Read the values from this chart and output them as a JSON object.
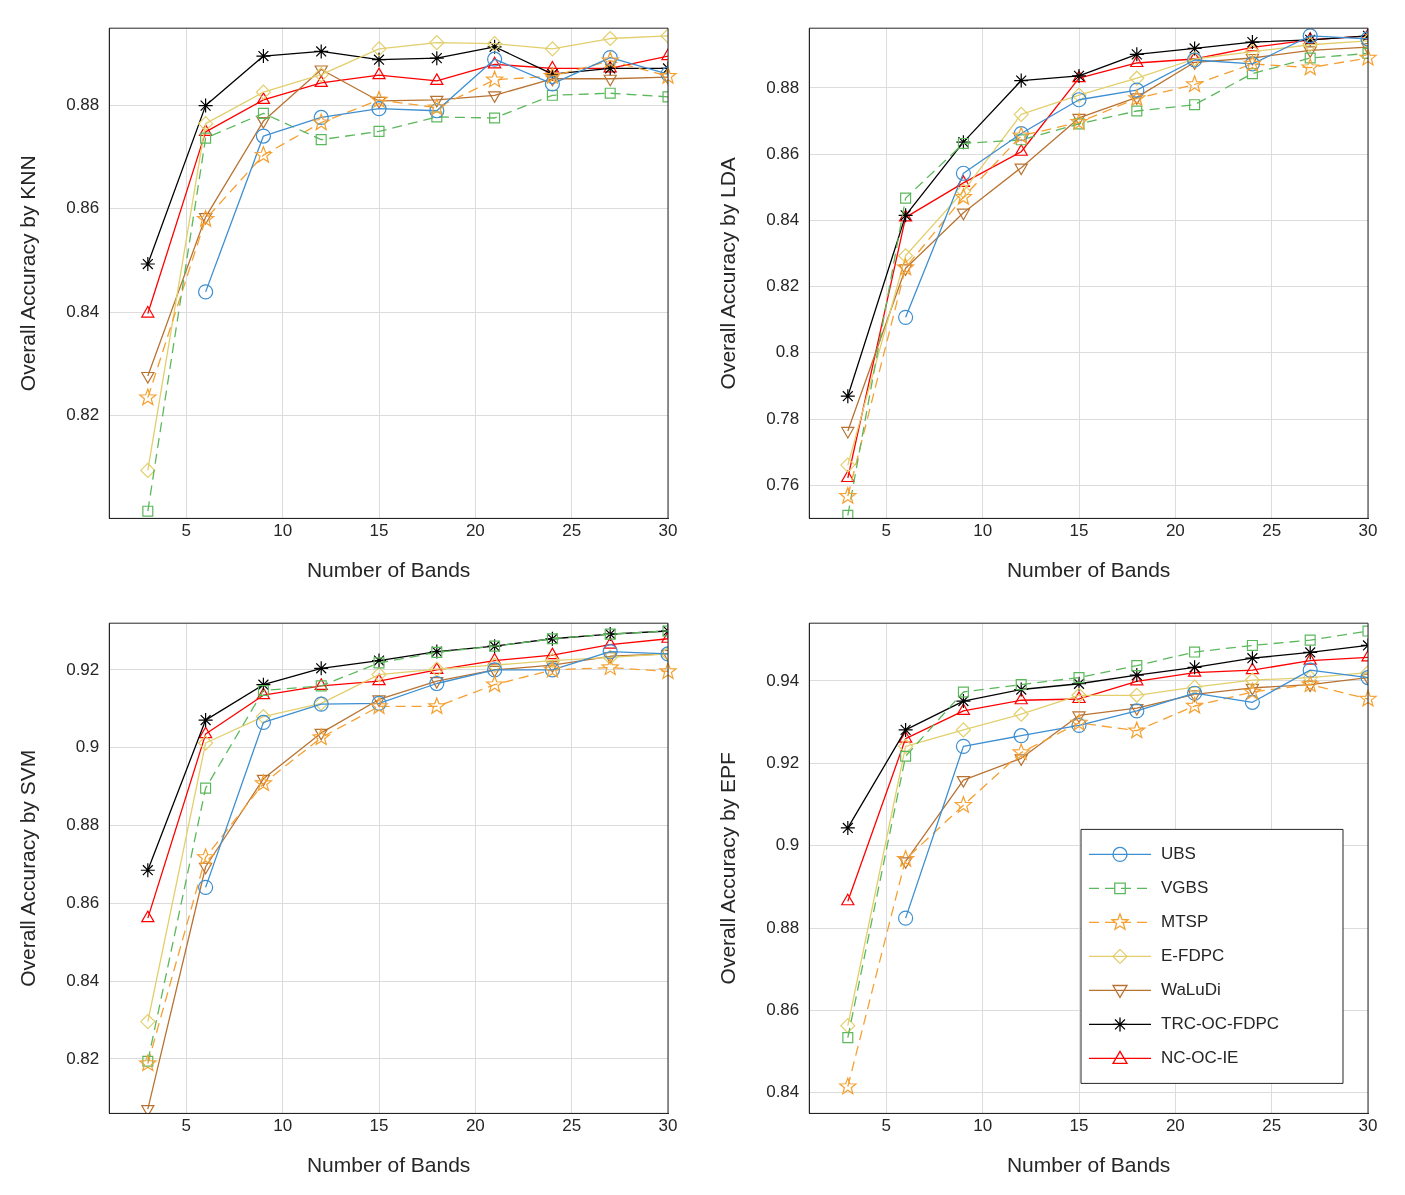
{
  "chart_data": [
    {
      "type": "line",
      "xlabel": "Number of Bands",
      "ylabel": "Overall Accuracy by KNN",
      "x": [
        3,
        6,
        9,
        12,
        15,
        18,
        21,
        24,
        27,
        30
      ],
      "xlim": [
        1,
        30
      ],
      "xticks": [
        5,
        10,
        15,
        20,
        25,
        30
      ],
      "ylim": [
        0.8,
        0.895
      ],
      "yticks": [
        0.82,
        0.84,
        0.86,
        0.88
      ],
      "grid": true,
      "legend": false,
      "series": [
        {
          "color": "#3d8fd1",
          "marker": "circle",
          "line_style": "solid",
          "values": [
            null,
            0.8439,
            0.8741,
            0.8777,
            0.8794,
            0.879,
            0.889,
            0.8842,
            0.8893,
            0.8861
          ]
        },
        {
          "color": "#5cb85c",
          "marker": "square",
          "line_style": "dashed",
          "values": [
            0.8014,
            0.8737,
            0.8785,
            0.8734,
            0.875,
            0.8778,
            0.8776,
            0.882,
            0.8824,
            0.8817
          ]
        },
        {
          "color": "#f5a030",
          "marker": "star",
          "line_style": "dashed",
          "values": [
            0.8234,
            0.858,
            0.8704,
            0.8767,
            0.8811,
            0.8796,
            0.885,
            0.8857,
            0.8887,
            0.8857
          ]
        },
        {
          "color": "#e2cf6c",
          "marker": "diamond",
          "line_style": "solid",
          "values": [
            0.8093,
            0.8765,
            0.8826,
            0.886,
            0.891,
            0.8922,
            0.892,
            0.891,
            0.893,
            0.8935
          ]
        },
        {
          "color": "#b87333",
          "marker": "triangle-down",
          "line_style": "solid",
          "values": [
            0.8276,
            0.8584,
            0.877,
            0.887,
            0.8809,
            0.8811,
            0.882,
            0.8852,
            0.8852,
            0.8855
          ]
        },
        {
          "color": "#000000",
          "marker": "cross",
          "line_style": "solid",
          "values": [
            0.8493,
            0.88,
            0.8896,
            0.8905,
            0.8889,
            0.8892,
            0.8914,
            0.8861,
            0.8872,
            0.8872
          ]
        },
        {
          "color": "#ff0000",
          "marker": "triangle",
          "line_style": "solid",
          "values": [
            0.8397,
            0.8749,
            0.8811,
            0.8844,
            0.8859,
            0.8848,
            0.888,
            0.8872,
            0.8872,
            0.8896
          ]
        }
      ]
    },
    {
      "type": "line",
      "xlabel": "Number of Bands",
      "ylabel": "Overall Accuracy by LDA",
      "x": [
        3,
        6,
        9,
        12,
        15,
        18,
        21,
        24,
        27,
        30
      ],
      "xlim": [
        1,
        30
      ],
      "xticks": [
        5,
        10,
        15,
        20,
        25,
        30
      ],
      "ylim": [
        0.75,
        0.898
      ],
      "yticks": [
        0.76,
        0.78,
        0.8,
        0.82,
        0.84,
        0.86,
        0.88
      ],
      "grid": true,
      "legend": false,
      "series": [
        {
          "color": "#3d8fd1",
          "marker": "circle",
          "line_style": "solid",
          "values": [
            null,
            0.8107,
            0.8542,
            0.8662,
            0.8764,
            0.8793,
            0.8884,
            0.8872,
            0.8957,
            0.8948
          ]
        },
        {
          "color": "#5cb85c",
          "marker": "square",
          "line_style": "dashed",
          "values": [
            0.7509,
            0.8467,
            0.8632,
            0.8643,
            0.8691,
            0.873,
            0.8749,
            0.8843,
            0.889,
            0.8904
          ]
        },
        {
          "color": "#f5a030",
          "marker": "star",
          "line_style": "dashed",
          "values": [
            0.7567,
            0.8257,
            0.847,
            0.8655,
            0.8696,
            0.8768,
            0.881,
            0.8872,
            0.8861,
            0.889
          ]
        },
        {
          "color": "#e2cf6c",
          "marker": "diamond",
          "line_style": "solid",
          "values": [
            0.7661,
            0.8293,
            0.8488,
            0.872,
            0.8778,
            0.8829,
            0.8887,
            0.8909,
            0.893,
            0.8942
          ]
        },
        {
          "color": "#b87333",
          "marker": "triangle-down",
          "line_style": "solid",
          "values": [
            0.7764,
            0.8255,
            0.8423,
            0.8559,
            0.8709,
            0.8771,
            0.8877,
            0.889,
            0.8913,
            0.8923
          ]
        },
        {
          "color": "#000000",
          "marker": "cross",
          "line_style": "solid",
          "values": [
            0.7869,
            0.8415,
            0.8636,
            0.8822,
            0.8836,
            0.8901,
            0.8919,
            0.8938,
            0.8945,
            0.8957
          ]
        },
        {
          "color": "#ff0000",
          "marker": "triangle",
          "line_style": "solid",
          "values": [
            0.7622,
            0.8409,
            0.8513,
            0.8607,
            0.8829,
            0.8875,
            0.8887,
            0.8922,
            0.8945,
            0.8957
          ]
        }
      ]
    },
    {
      "type": "line",
      "xlabel": "Number of Bands",
      "ylabel": "Overall Accuracy by SVM",
      "x": [
        3,
        6,
        9,
        12,
        15,
        18,
        21,
        24,
        27,
        30
      ],
      "xlim": [
        1,
        30
      ],
      "xticks": [
        5,
        10,
        15,
        20,
        25,
        30
      ],
      "ylim": [
        0.806,
        0.932
      ],
      "yticks": [
        0.82,
        0.84,
        0.86,
        0.88,
        0.9,
        0.92
      ],
      "grid": true,
      "legend": false,
      "series": [
        {
          "color": "#3d8fd1",
          "marker": "circle",
          "line_style": "solid",
          "values": [
            null,
            0.8641,
            0.9065,
            0.9112,
            0.9114,
            0.9165,
            0.92,
            0.92,
            0.9247,
            0.9241
          ]
        },
        {
          "color": "#5cb85c",
          "marker": "square",
          "line_style": "dashed",
          "values": [
            0.8194,
            0.8896,
            0.9147,
            0.9159,
            0.9218,
            0.9245,
            0.9261,
            0.928,
            0.9292,
            0.93
          ]
        },
        {
          "color": "#f5a030",
          "marker": "star",
          "line_style": "dashed",
          "values": [
            0.8188,
            0.8718,
            0.8908,
            0.9026,
            0.9106,
            0.9106,
            0.9162,
            0.92,
            0.9206,
            0.9196
          ]
        },
        {
          "color": "#e2cf6c",
          "marker": "diamond",
          "line_style": "solid",
          "values": [
            0.8296,
            0.9012,
            0.908,
            0.9114,
            0.9188,
            0.9202,
            0.9212,
            0.9224,
            0.9232,
            0.9241
          ]
        },
        {
          "color": "#b87333",
          "marker": "triangle-down",
          "line_style": "solid",
          "values": [
            0.8071,
            0.8694,
            0.892,
            0.9038,
            0.9124,
            0.9171,
            0.92,
            0.9212,
            0.9235,
            0.9241
          ]
        },
        {
          "color": "#000000",
          "marker": "cross",
          "line_style": "solid",
          "values": [
            0.8685,
            0.9071,
            0.9162,
            0.9204,
            0.9224,
            0.9247,
            0.9261,
            0.928,
            0.9292,
            0.93
          ]
        },
        {
          "color": "#ff0000",
          "marker": "triangle",
          "line_style": "solid",
          "values": [
            0.8562,
            0.9035,
            0.9135,
            0.9159,
            0.9171,
            0.92,
            0.9224,
            0.9238,
            0.9265,
            0.928
          ]
        }
      ]
    },
    {
      "type": "line",
      "xlabel": "Number of Bands",
      "ylabel": "Overall Accuracy by EPF",
      "x": [
        3,
        6,
        9,
        12,
        15,
        18,
        21,
        24,
        27,
        30
      ],
      "xlim": [
        1,
        30
      ],
      "xticks": [
        5,
        10,
        15,
        20,
        25,
        30
      ],
      "ylim": [
        0.835,
        0.954
      ],
      "yticks": [
        0.84,
        0.86,
        0.88,
        0.9,
        0.92,
        0.94
      ],
      "grid": true,
      "legend": "bottom right",
      "series": [
        {
          "name": "UBS",
          "color": "#3d8fd1",
          "marker": "circle",
          "line_style": "solid",
          "values": [
            null,
            0.8824,
            0.9241,
            0.9267,
            0.9292,
            0.9327,
            0.937,
            0.9348,
            0.9426,
            0.9408
          ]
        },
        {
          "name": "VGBS",
          "color": "#5cb85c",
          "marker": "square",
          "line_style": "dashed",
          "values": [
            0.8534,
            0.9217,
            0.9373,
            0.9391,
            0.9408,
            0.9437,
            0.947,
            0.9486,
            0.9499,
            0.9521
          ]
        },
        {
          "name": "MTSP",
          "color": "#f5a030",
          "marker": "star",
          "line_style": "dashed",
          "values": [
            0.8415,
            0.8967,
            0.9098,
            0.9226,
            0.9298,
            0.9279,
            0.9339,
            0.9373,
            0.9391,
            0.9356
          ]
        },
        {
          "name": "E-FDPC",
          "color": "#e2cf6c",
          "marker": "diamond",
          "line_style": "solid",
          "values": [
            0.8563,
            0.9241,
            0.9281,
            0.9319,
            0.9365,
            0.9365,
            0.9385,
            0.9402,
            0.9408,
            0.942
          ]
        },
        {
          "name": "WaLuDi",
          "color": "#b87333",
          "marker": "triangle-down",
          "line_style": "solid",
          "values": [
            null,
            0.8962,
            0.9159,
            0.9212,
            0.9316,
            0.9334,
            0.9367,
            0.9383,
            0.9391,
            0.9408
          ]
        },
        {
          "name": "TRC-OC-FDPC",
          "color": "#000000",
          "marker": "cross",
          "line_style": "solid",
          "values": [
            0.9043,
            0.9281,
            0.9351,
            0.9379,
            0.9393,
            0.9414,
            0.9433,
            0.9455,
            0.9469,
            0.9486
          ]
        },
        {
          "name": "NC-OC-IE",
          "color": "#ff0000",
          "marker": "triangle",
          "line_style": "solid",
          "values": [
            0.8865,
            0.926,
            0.9327,
            0.9353,
            0.9356,
            0.9399,
            0.942,
            0.9426,
            0.9449,
            0.9457
          ]
        }
      ]
    }
  ]
}
